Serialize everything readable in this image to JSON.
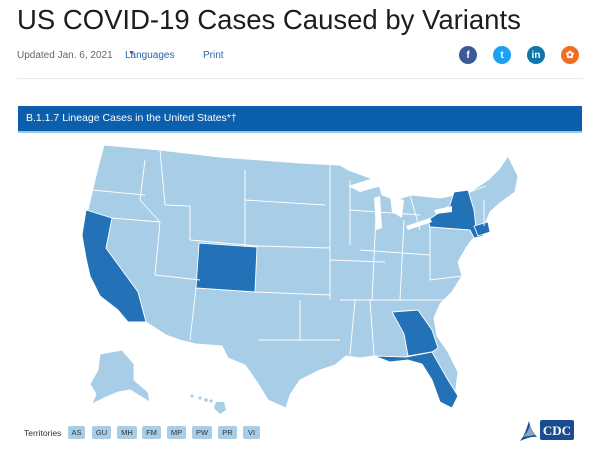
{
  "page": {
    "title": "US COVID-19 Cases Caused by Variants",
    "updated": "Updated Jan. 6, 2021",
    "languages_label": "Languages",
    "print_label": "Print"
  },
  "share": [
    {
      "name": "facebook",
      "glyph": "f",
      "color": "#3a5a98"
    },
    {
      "name": "twitter",
      "glyph": "t",
      "color": "#1da1f2"
    },
    {
      "name": "linkedin",
      "glyph": "in",
      "color": "#0e76a8"
    },
    {
      "name": "syndicate",
      "glyph": "✿",
      "color": "#f26d21"
    }
  ],
  "map": {
    "heading": "B.1.1.7 Lineage Cases in the United States*†",
    "colors": {
      "no_cases": "#a8cde6",
      "cases": "#2372b8",
      "borders": "#ffffff",
      "banner": "#0b5fad"
    },
    "states_with_cases": [
      "California",
      "Colorado",
      "New York",
      "Connecticut",
      "Georgia",
      "Florida"
    ]
  },
  "territories": {
    "label": "Territories",
    "items": [
      "AS",
      "GU",
      "MH",
      "FM",
      "MP",
      "PW",
      "PR",
      "VI"
    ]
  },
  "logo": {
    "text": "CDC"
  }
}
